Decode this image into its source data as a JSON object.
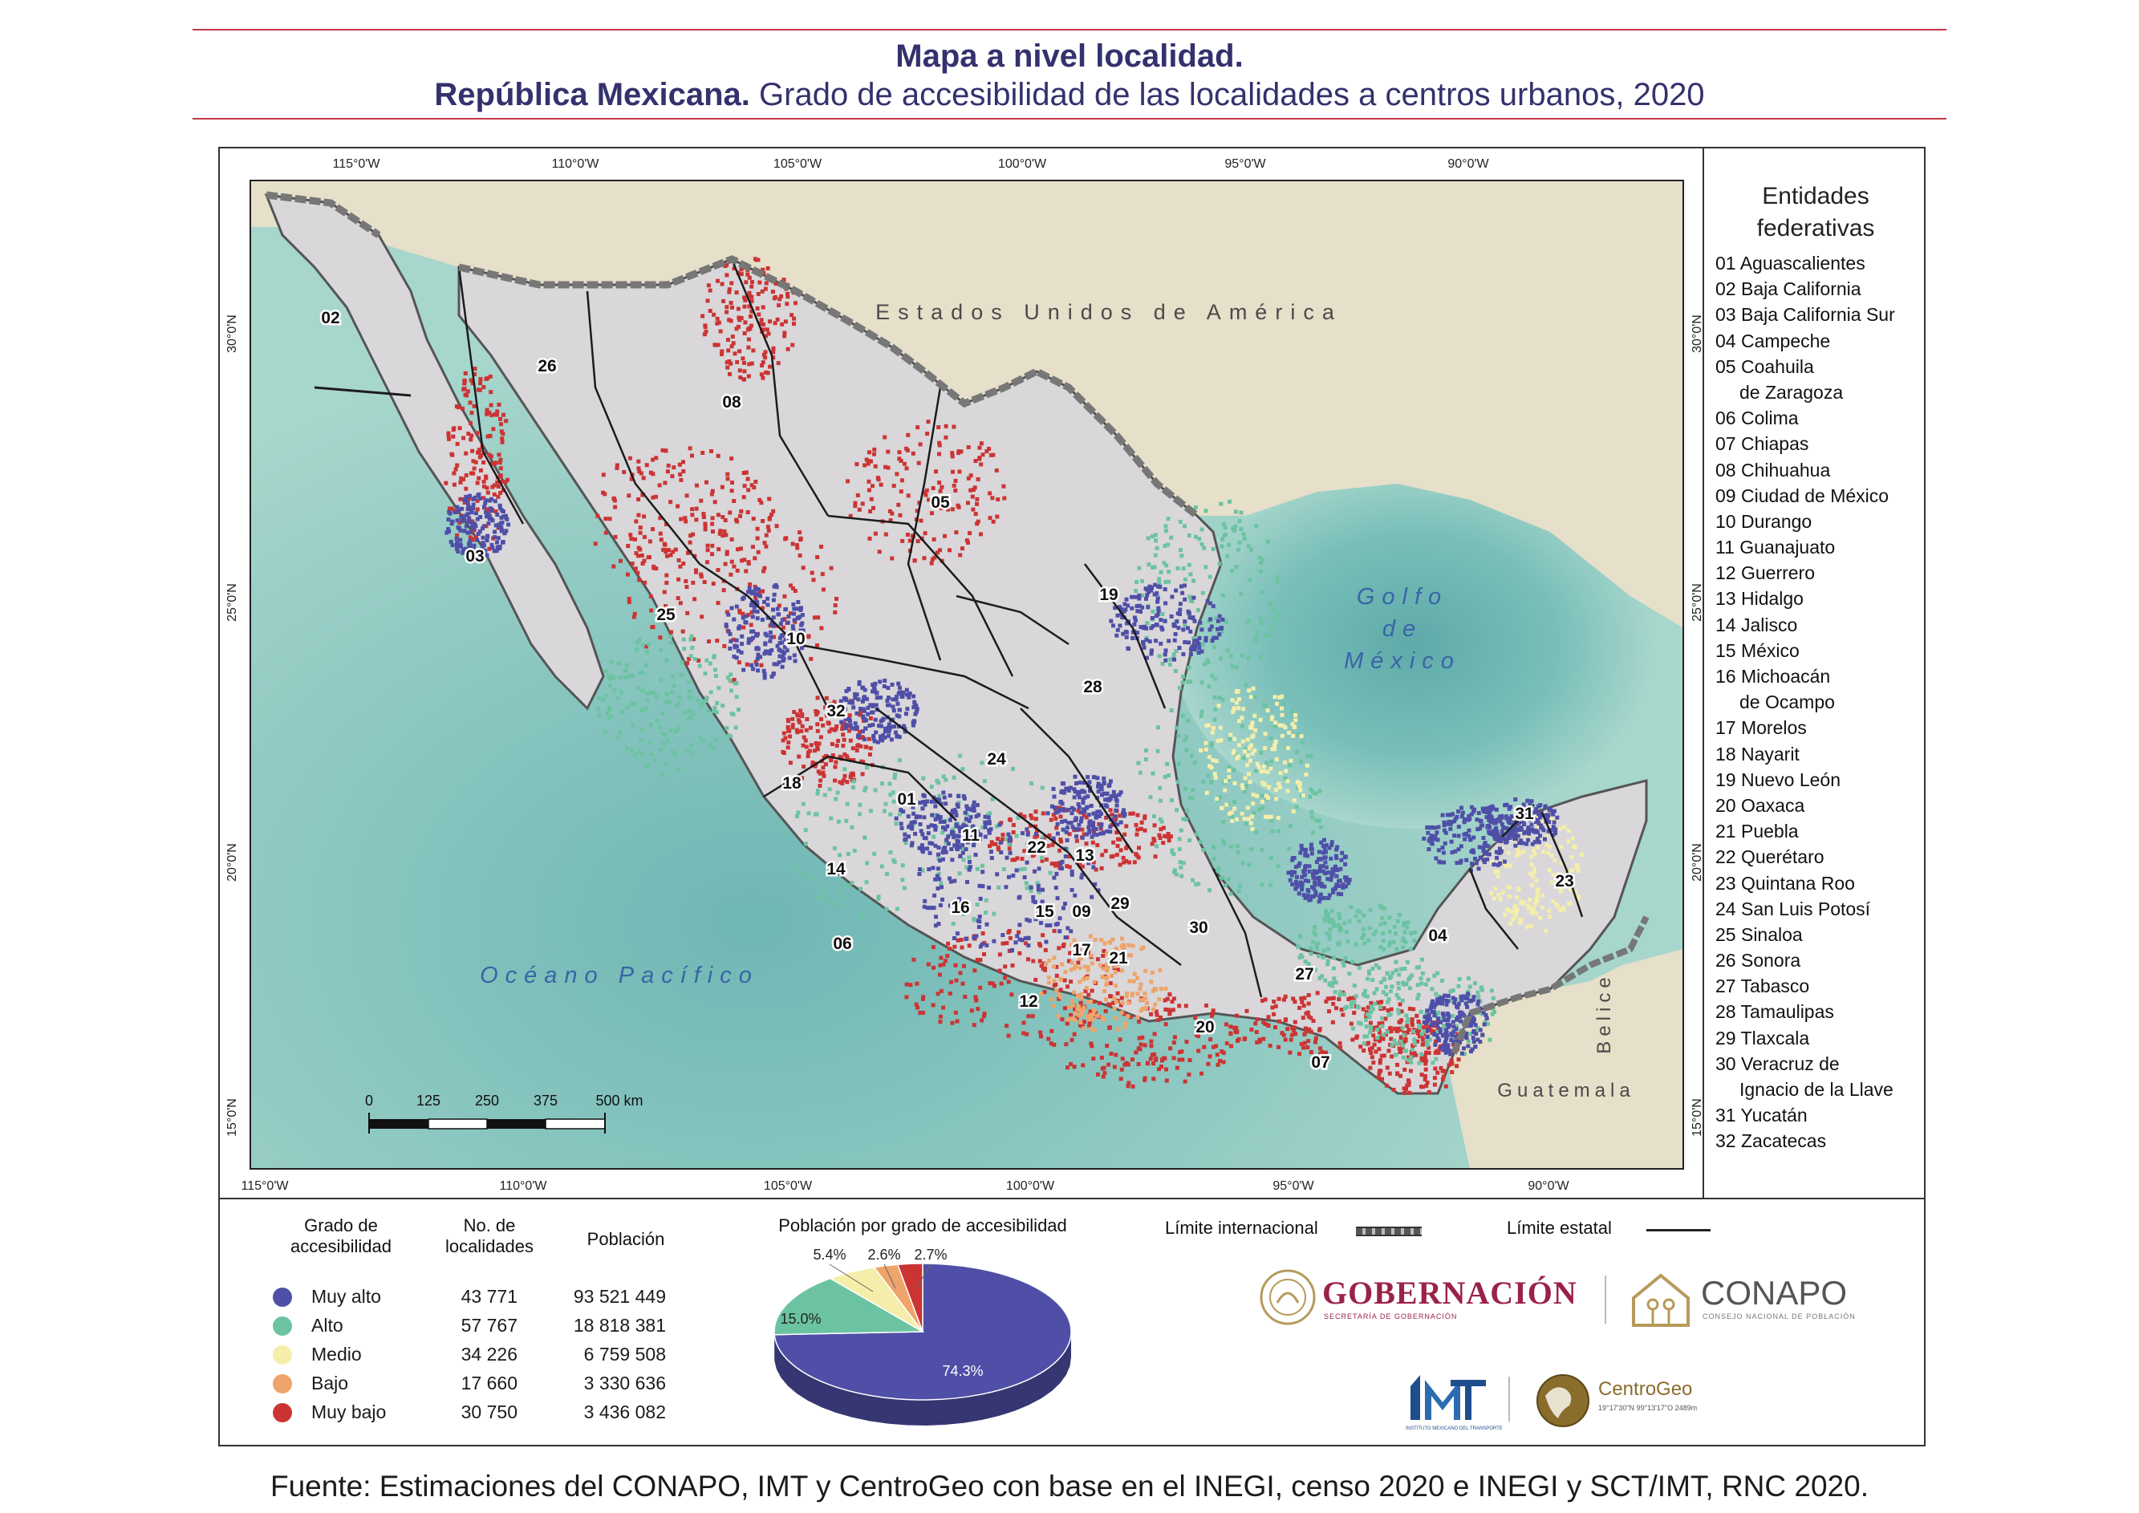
{
  "header": {
    "title": "Mapa a nivel localidad.",
    "subtitle_bold": "República Mexicana.",
    "subtitle_rest": " Grado de accesibilidad de las localidades a centros urbanos, 2020"
  },
  "map": {
    "country_label": "Estados Unidos de América",
    "gulf_label": [
      "Golfo",
      "de",
      "México"
    ],
    "ocean_label": "Océano Pacífico",
    "guatemala_label": "Guatemala",
    "belice_label": "Belice",
    "lon_labels": [
      "115°0'W",
      "110°0'W",
      "105°0'W",
      "100°0'W",
      "95°0'W",
      "90°0'W"
    ],
    "lat_labels": [
      "30°0'N",
      "25°0'N",
      "20°0'N",
      "15°0'N"
    ],
    "scale_ticks": [
      "0",
      "125",
      "250",
      "375",
      "500 km"
    ],
    "state_codes": [
      "02",
      "26",
      "08",
      "05",
      "03",
      "19",
      "25",
      "10",
      "28",
      "32",
      "24",
      "18",
      "01",
      "11",
      "22",
      "13",
      "31",
      "14",
      "23",
      "16",
      "15",
      "09",
      "29",
      "30",
      "04",
      "06",
      "17",
      "21",
      "27",
      "12",
      "20",
      "07"
    ],
    "colors": {
      "ocean": "#a7d6cc",
      "deep_ocean": "#6fb7b4",
      "foreign_land": "#e6dfc9",
      "mexico_base": "#d9d7da",
      "muy_alto": "#4f4fa8",
      "alto": "#6cc3a1",
      "medio": "#f4eeaa",
      "bajo": "#eea46a",
      "muy_bajo": "#cc3434"
    }
  },
  "entidades": {
    "title_line1": "Entidades",
    "title_line2": "federativas",
    "items": [
      "01 Aguascalientes",
      "02 Baja California",
      "03 Baja California Sur",
      "04 Campeche",
      "05 Coahuila",
      "de Zaragoza",
      "06 Colima",
      "07 Chiapas",
      "08 Chihuahua",
      "09 Ciudad de México",
      "10 Durango",
      "11 Guanajuato",
      "12 Guerrero",
      "13 Hidalgo",
      "14 Jalisco",
      "15 México",
      "16 Michoacán",
      "de Ocampo",
      "17 Morelos",
      "18 Nayarit",
      "19 Nuevo León",
      "20 Oaxaca",
      "21 Puebla",
      "22 Querétaro",
      "23 Quintana Roo",
      "24 San Luis Potosí",
      "25 Sinaloa",
      "26 Sonora",
      "27 Tabasco",
      "28 Tamaulipas",
      "29 Tlaxcala",
      "30 Veracruz de",
      "Ignacio de la Llave",
      "31 Yucatán",
      "32 Zacatecas"
    ]
  },
  "legend": {
    "col1_line1": "Grado de",
    "col1_line2": "accesibilidad",
    "col2_line1": "No. de",
    "col2_line2": "localidades",
    "col3": "Población",
    "rows": [
      {
        "label": "Muy alto",
        "localidades": "43 771",
        "poblacion": "93 521 449",
        "color": "#4f4fa8"
      },
      {
        "label": "Alto",
        "localidades": "57 767",
        "poblacion": "18 818 381",
        "color": "#6cc3a1"
      },
      {
        "label": "Medio",
        "localidades": "34 226",
        "poblacion": "6 759 508",
        "color": "#f4eeaa"
      },
      {
        "label": "Bajo",
        "localidades": "17 660",
        "poblacion": "3 330 636",
        "color": "#eea46a"
      },
      {
        "label": "Muy bajo",
        "localidades": "30 750",
        "poblacion": "3 436 082",
        "color": "#cc3434"
      }
    ]
  },
  "chart_data": {
    "type": "pie",
    "title": "Población por grado de accesibilidad",
    "categories": [
      "Muy alto",
      "Alto",
      "Medio",
      "Bajo",
      "Muy bajo"
    ],
    "values": [
      74.3,
      15.0,
      5.4,
      2.6,
      2.7
    ],
    "labels": [
      "74.3%",
      "15.0%",
      "5.4%",
      "2.6%",
      "2.7%"
    ],
    "colors": [
      "#4f4fa8",
      "#6cc3a1",
      "#f4eeaa",
      "#eea46a",
      "#cc3434"
    ]
  },
  "limits": {
    "international": "Límite internacional",
    "state": "Límite estatal"
  },
  "logos": {
    "gobernacion": "GOBERNACIÓN",
    "gobernacion_sub": "SECRETARÍA DE GOBERNACIÓN",
    "conapo": "CONAPO",
    "conapo_sub": "CONSEJO NACIONAL DE POBLACIÓN",
    "imt_sub": "INSTITUTO MEXICANO DEL TRANSPORTE",
    "centrogeo": "CentroGeo",
    "centrogeo_sub": "19°17'30\"N  99°13'17\"O  2489m"
  },
  "footer": {
    "source": "Fuente: Estimaciones del CONAPO, IMT y CentroGeo con base en el INEGI, censo 2020 e INEGI y SCT/IMT, RNC 2020."
  }
}
